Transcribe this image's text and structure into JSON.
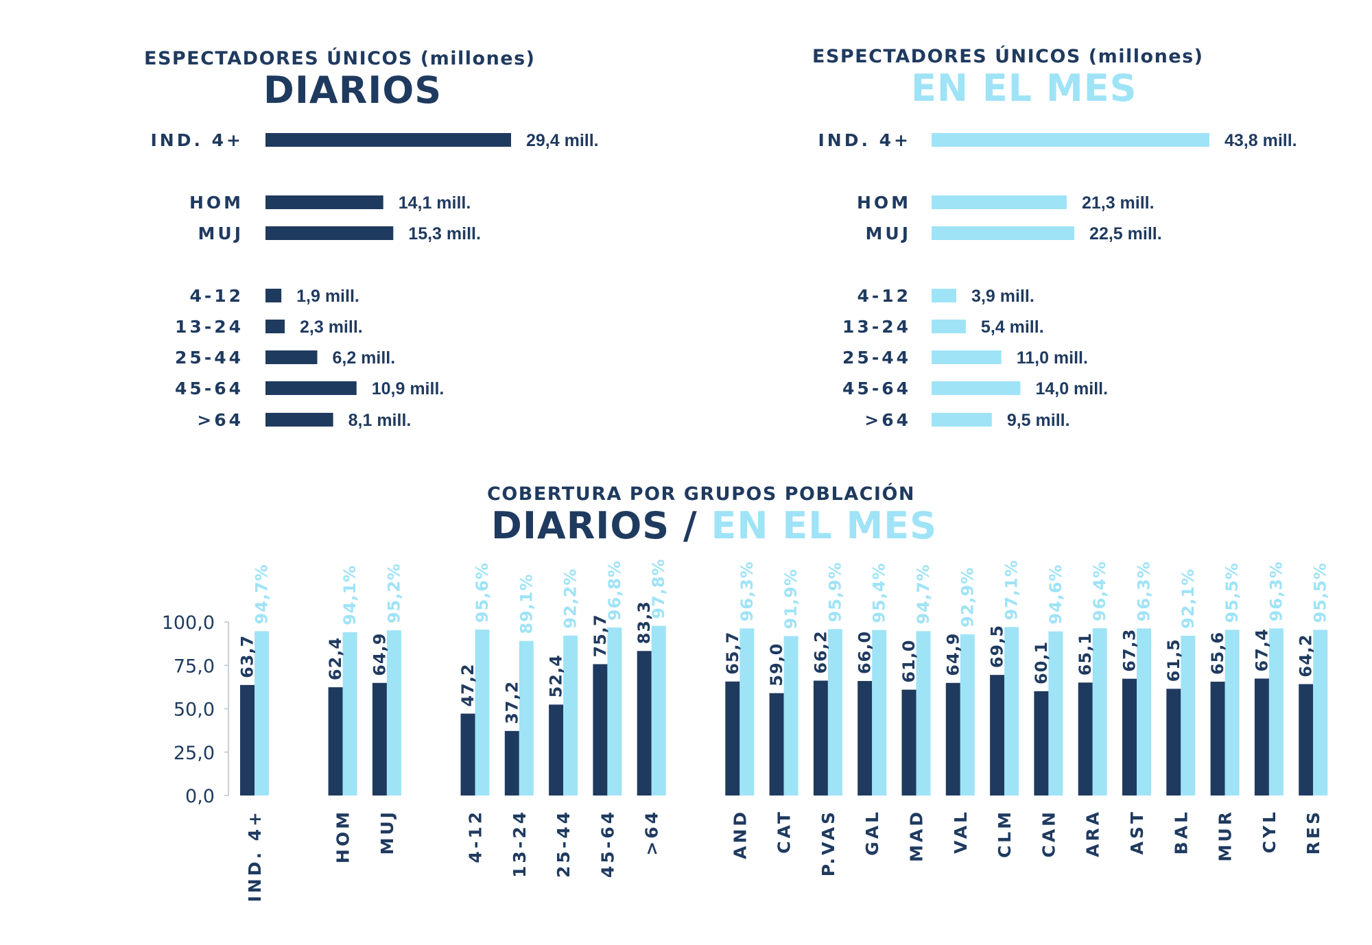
{
  "top_left": {
    "subtitle": "ESPECTADORES ÚNICOS (millones)",
    "title": "DIARIOS"
  },
  "top_right": {
    "subtitle": "ESPECTADORES ÚNICOS (millones)",
    "title": "EN EL MES"
  },
  "bottom": {
    "subtitle": "COBERTURA POR GRUPOS POBLACIÓN",
    "title_part1": "DIARIOS",
    "title_sep": " / ",
    "title_part2": "EN EL MES"
  },
  "colors": {
    "dark": "#1f3a5f",
    "light": "#9fe3f7",
    "axis": "#c8cfdb"
  },
  "chart_data": [
    {
      "type": "bar",
      "orientation": "horizontal",
      "title": "DIARIOS",
      "subtitle": "ESPECTADORES ÚNICOS (millones)",
      "categories": [
        "IND. 4+",
        "HOM",
        "MUJ",
        "4-12",
        "13-24",
        "25-44",
        "45-64",
        ">64"
      ],
      "values": [
        29.4,
        14.1,
        15.3,
        1.9,
        2.3,
        6.2,
        10.9,
        8.1
      ],
      "labels": [
        "29,4 mill.",
        "14,1 mill.",
        "15,3 mill.",
        "1,9 mill.",
        "2,3 mill.",
        "6,2 mill.",
        "10,9 mill.",
        "8,1 mill."
      ],
      "unit": "millones",
      "color": "#1f3a5f"
    },
    {
      "type": "bar",
      "orientation": "horizontal",
      "title": "EN EL MES",
      "subtitle": "ESPECTADORES ÚNICOS (millones)",
      "categories": [
        "IND. 4+",
        "HOM",
        "MUJ",
        "4-12",
        "13-24",
        "25-44",
        "45-64",
        ">64"
      ],
      "values": [
        43.8,
        21.3,
        22.5,
        3.9,
        5.4,
        11.0,
        14.0,
        9.5
      ],
      "labels": [
        "43,8 mill.",
        "21,3 mill.",
        "22,5 mill.",
        "3,9 mill.",
        "5,4 mill.",
        "11,0 mill.",
        "14,0 mill.",
        "9,5 mill."
      ],
      "unit": "millones",
      "color": "#9fe3f7"
    },
    {
      "type": "bar",
      "orientation": "vertical",
      "title": "DIARIOS / EN EL MES",
      "subtitle": "COBERTURA POR GRUPOS POBLACIÓN",
      "categories": [
        "IND. 4+",
        "HOM",
        "MUJ",
        "4-12",
        "13-24",
        "25-44",
        "45-64",
        ">64",
        "AND",
        "CAT",
        "P.VAS",
        "GAL",
        "MAD",
        "VAL",
        "CLM",
        "CAN",
        "ARA",
        "AST",
        "BAL",
        "MUR",
        "CYL",
        "RES"
      ],
      "groups": [
        [
          0
        ],
        [
          1,
          2
        ],
        [
          3,
          4,
          5,
          6,
          7
        ],
        [
          8,
          9,
          10,
          11,
          12,
          13,
          14,
          15,
          16,
          17,
          18,
          19,
          20,
          21
        ]
      ],
      "series": [
        {
          "name": "DIARIOS",
          "color": "#1f3a5f",
          "values": [
            63.7,
            62.4,
            64.9,
            47.2,
            37.2,
            52.4,
            75.7,
            83.3,
            65.7,
            59.0,
            66.2,
            66.0,
            61.0,
            64.9,
            69.5,
            60.1,
            65.1,
            67.3,
            61.5,
            65.6,
            67.4,
            64.2
          ],
          "labels": [
            "63,7",
            "62,4",
            "64,9",
            "47,2",
            "37,2",
            "52,4",
            "75,7",
            "83,3",
            "65,7",
            "59,0",
            "66,2",
            "66,0",
            "61,0",
            "64,9",
            "69,5",
            "60,1",
            "65,1",
            "67,3",
            "61,5",
            "65,6",
            "67,4",
            "64,2"
          ]
        },
        {
          "name": "EN EL MES",
          "color": "#9fe3f7",
          "values": [
            94.7,
            94.1,
            95.2,
            95.6,
            89.1,
            92.2,
            96.8,
            97.8,
            96.3,
            91.9,
            95.9,
            95.4,
            94.7,
            92.9,
            97.1,
            94.6,
            96.4,
            96.3,
            92.1,
            95.5,
            96.3,
            95.5
          ],
          "labels": [
            "94,7%",
            "94,1%",
            "95,2%",
            "95,6%",
            "89,1%",
            "92,2%",
            "96,8%",
            "97,8%",
            "96,3%",
            "91,9%",
            "95,9%",
            "95,4%",
            "94,7%",
            "92,9%",
            "97,1%",
            "94,6%",
            "96,4%",
            "96,3%",
            "92,1%",
            "95,5%",
            "96,3%",
            "95,5%"
          ]
        }
      ],
      "yticks": [
        0,
        25,
        50,
        75,
        100
      ],
      "ytick_labels": [
        "0,0",
        "25,0",
        "50,0",
        "75,0",
        "100,0"
      ],
      "ylim": [
        0,
        100
      ],
      "xlabel": "",
      "ylabel": "",
      "grid": false,
      "legend": "none"
    }
  ]
}
